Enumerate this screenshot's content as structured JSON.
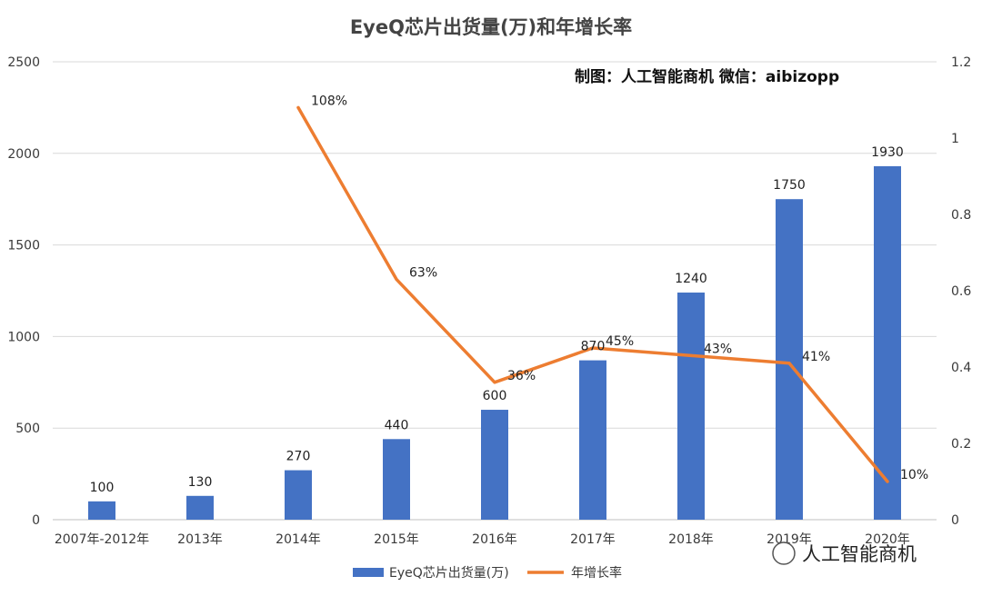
{
  "chart_data": {
    "type": "bar",
    "title": "EyeQ芯片出货量(万)和年增长率",
    "credit": "制图：人工智能商机    微信：aibizopp",
    "watermark": "人工智能商机",
    "categories": [
      "2007年-2012年",
      "2013年",
      "2014年",
      "2015年",
      "2016年",
      "2017年",
      "2018年",
      "2019年",
      "2020年"
    ],
    "series": [
      {
        "name": "EyeQ芯片出货量(万)",
        "type": "bar",
        "axis": "left",
        "color": "#4472c4",
        "values": [
          100,
          130,
          270,
          440,
          600,
          870,
          1240,
          1750,
          1930
        ],
        "labels": [
          "100",
          "130",
          "270",
          "440",
          "600",
          "870",
          "1240",
          "1750",
          "1930"
        ]
      },
      {
        "name": "年增长率",
        "type": "line",
        "axis": "right",
        "color": "#ed7d31",
        "values": [
          null,
          null,
          1.08,
          0.63,
          0.36,
          0.45,
          0.43,
          0.41,
          0.1
        ],
        "labels": [
          "",
          "",
          "108%",
          "63%",
          "36%",
          "45%",
          "43%",
          "41%",
          "10%"
        ]
      }
    ],
    "y_left": {
      "min": 0,
      "max": 2500,
      "ticks": [
        "0",
        "500",
        "1000",
        "1500",
        "2000",
        "2500"
      ]
    },
    "y_right": {
      "min": 0,
      "max": 1.2,
      "ticks": [
        "0",
        "0.2",
        "0.4",
        "0.6",
        "0.8",
        "1",
        "1.2"
      ]
    },
    "grid": true,
    "legend_position": "bottom"
  }
}
